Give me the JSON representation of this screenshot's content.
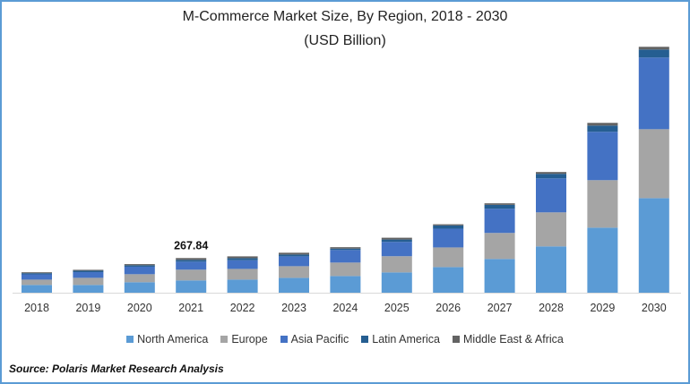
{
  "chart_data": {
    "type": "bar",
    "stacked": true,
    "title": "M-Commerce Market Size, By Region, 2018 - 2030",
    "subtitle": "(USD Billion)",
    "categories": [
      "2018",
      "2019",
      "2020",
      "2021",
      "2022",
      "2023",
      "2024",
      "2025",
      "2026",
      "2027",
      "2028",
      "2029",
      "2030"
    ],
    "series": [
      {
        "name": "North America",
        "color": "#5b9bd5",
        "values": [
          60,
          60,
          81,
          95,
          101,
          115,
          129,
          157,
          198,
          261,
          358,
          503,
          731
        ]
      },
      {
        "name": "Europe",
        "color": "#a5a5a5",
        "values": [
          41,
          55,
          62,
          83,
          83,
          90,
          104,
          125,
          152,
          201,
          263,
          367,
          533
        ]
      },
      {
        "name": "Asia Pacific",
        "color": "#4472c4",
        "values": [
          41,
          44,
          58,
          62,
          67,
          76,
          97,
          111,
          145,
          187,
          263,
          374,
          554
        ]
      },
      {
        "name": "Latin America",
        "color": "#255e91",
        "values": [
          9,
          11,
          11,
          14,
          16,
          14,
          11,
          18,
          25,
          30,
          35,
          48,
          62
        ]
      },
      {
        "name": "Middle East & Africa",
        "color": "#636363",
        "values": [
          7,
          7,
          9,
          13.84,
          14,
          14,
          11,
          14,
          9,
          12,
          14,
          21,
          21
        ]
      }
    ],
    "data_labels": [
      {
        "category": "2021",
        "text": "267.84"
      }
    ],
    "y_axis_visible": false,
    "grid": false,
    "legend_position": "bottom"
  },
  "source": "Source: Polaris  Market Research Analysis"
}
